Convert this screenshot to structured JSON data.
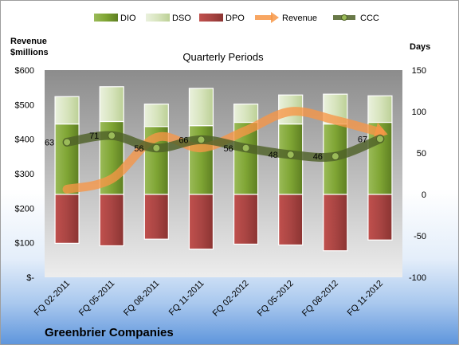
{
  "chart_data": {
    "type": "bar",
    "title": "Quarterly Periods",
    "company": "Greenbrier Companies",
    "left_axis_title": [
      "Revenue",
      "$millions"
    ],
    "right_axis_title": "Days",
    "categories": [
      "FQ 02-2011",
      "FQ 05-2011",
      "FQ 08-2011",
      "FQ 11-2011",
      "FQ 02-2012",
      "FQ 05-2012",
      "FQ 08-2012",
      "FQ 11-2012"
    ],
    "left_ticks": [
      "$-",
      "$100",
      "$200",
      "$300",
      "$400",
      "$500",
      "$600"
    ],
    "right_ticks": [
      "-100",
      "-50",
      "0",
      "50",
      "100",
      "150"
    ],
    "left_ylim": [
      0,
      600
    ],
    "right_ylim": [
      -100,
      150
    ],
    "series": [
      {
        "name": "DIO",
        "axis": "right",
        "stack": "positive",
        "values": [
          85,
          88,
          82,
          83,
          87,
          85,
          85,
          87
        ],
        "color": "#77A033"
      },
      {
        "name": "DSO",
        "axis": "right",
        "stack": "positive",
        "values": [
          33,
          42,
          27,
          45,
          22,
          35,
          36,
          32
        ],
        "color": "#D7E4BD"
      },
      {
        "name": "DPO",
        "axis": "right",
        "stack": "negative",
        "values": [
          -59,
          -62,
          -54,
          -66,
          -60,
          -61,
          -68,
          -55
        ],
        "color": "#C0504D"
      },
      {
        "name": "Revenue",
        "axis": "left",
        "type": "line",
        "values": [
          255,
          285,
          405,
          375,
          425,
          480,
          455,
          420
        ],
        "color": "#F79646"
      },
      {
        "name": "CCC",
        "axis": "right",
        "type": "line",
        "values": [
          63,
          71,
          56,
          66,
          56,
          48,
          46,
          67
        ],
        "color": "#4F6228"
      }
    ],
    "legend": "top",
    "grid": false
  }
}
